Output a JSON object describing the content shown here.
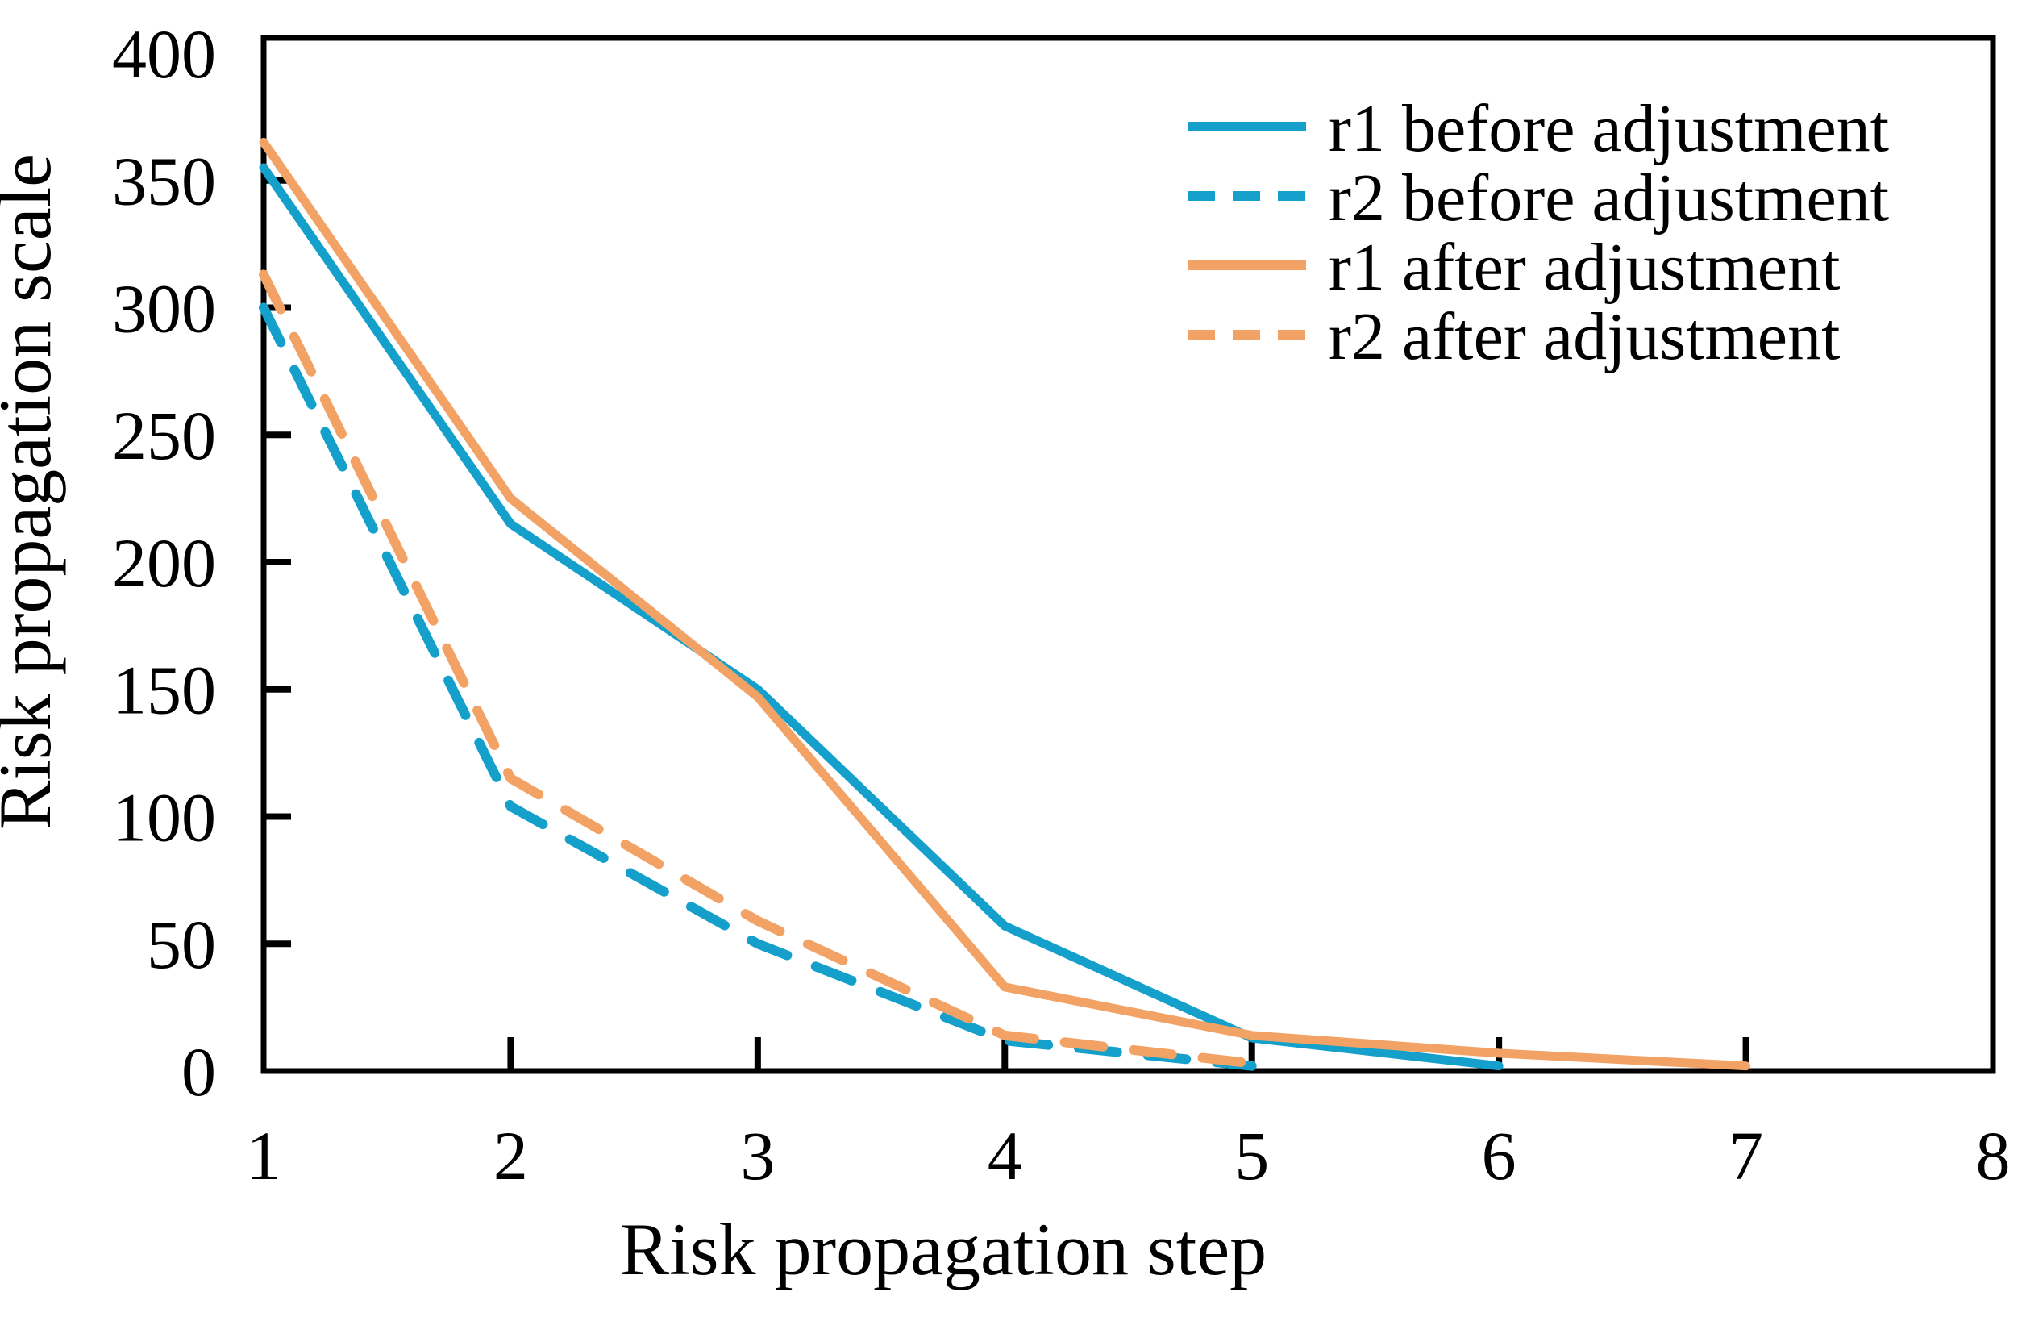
{
  "chart_data": {
    "type": "line",
    "xlabel": "Risk propagation step",
    "ylabel": "Risk propagation scale",
    "xlim": [
      1,
      8
    ],
    "ylim": [
      0,
      400
    ],
    "xticks": [
      1,
      2,
      3,
      4,
      5,
      6,
      7,
      8
    ],
    "yticks": [
      0,
      50,
      100,
      150,
      200,
      250,
      300,
      350,
      400
    ],
    "grid": "off",
    "legend_position": "upper-right-inside",
    "colors": {
      "before": "#14a0cb",
      "after": "#f2a265",
      "axis": "#000000",
      "background": "#ffffff"
    },
    "series": [
      {
        "name": "r1 before adjustment",
        "color": "#14a0cb",
        "style": "solid",
        "x": [
          1,
          2,
          3,
          4,
          5,
          6
        ],
        "values": [
          355,
          215,
          150,
          57,
          13,
          2
        ]
      },
      {
        "name": "r2 before adjustment",
        "color": "#14a0cb",
        "style": "dashed",
        "x": [
          1,
          2,
          3,
          4,
          5
        ],
        "values": [
          300,
          104,
          50,
          12,
          2
        ]
      },
      {
        "name": "r1 after adjustment",
        "color": "#f2a265",
        "style": "solid",
        "x": [
          1,
          2,
          3,
          4,
          5,
          6,
          7
        ],
        "values": [
          365,
          225,
          147,
          33,
          14,
          7,
          2
        ]
      },
      {
        "name": "r2 after adjustment",
        "color": "#f2a265",
        "style": "dashed",
        "x": [
          1,
          2,
          3,
          4,
          5
        ],
        "values": [
          313,
          115,
          59,
          14,
          3
        ]
      }
    ]
  }
}
